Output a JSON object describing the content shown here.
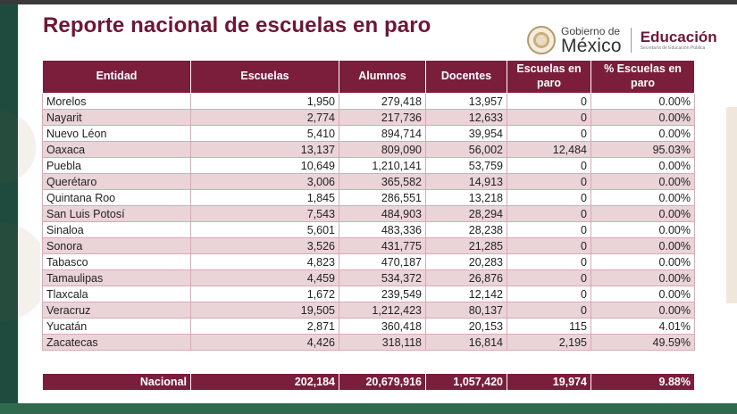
{
  "title": "Reporte nacional de escuelas en paro",
  "logo": {
    "gobierno_small": "Gobierno de",
    "gobierno_big": "México",
    "education_title": "Educación",
    "education_sub": "Secretaría de Educación Pública"
  },
  "colors": {
    "accent": "#7a1e3c",
    "row_alt": "#ead4d8",
    "footer_green": "#2f6a4f"
  },
  "table": {
    "headers": [
      "Entidad",
      "Escuelas",
      "Alumnos",
      "Docentes",
      "Escuelas en paro",
      "% Escuelas en paro"
    ],
    "rows": [
      [
        "Morelos",
        "1,950",
        "279,418",
        "13,957",
        "0",
        "0.00%"
      ],
      [
        "Nayarit",
        "2,774",
        "217,736",
        "12,633",
        "0",
        "0.00%"
      ],
      [
        "Nuevo Léon",
        "5,410",
        "894,714",
        "39,954",
        "0",
        "0.00%"
      ],
      [
        "Oaxaca",
        "13,137",
        "809,090",
        "56,002",
        "12,484",
        "95.03%"
      ],
      [
        "Puebla",
        "10,649",
        "1,210,141",
        "53,759",
        "0",
        "0.00%"
      ],
      [
        "Querétaro",
        "3,006",
        "365,582",
        "14,913",
        "0",
        "0.00%"
      ],
      [
        "Quintana Roo",
        "1,845",
        "286,551",
        "13,218",
        "0",
        "0.00%"
      ],
      [
        "San Luis Potosí",
        "7,543",
        "484,903",
        "28,294",
        "0",
        "0.00%"
      ],
      [
        "Sinaloa",
        "5,601",
        "483,336",
        "28,238",
        "0",
        "0.00%"
      ],
      [
        "Sonora",
        "3,526",
        "431,775",
        "21,285",
        "0",
        "0.00%"
      ],
      [
        "Tabasco",
        "4,823",
        "470,187",
        "20,283",
        "0",
        "0.00%"
      ],
      [
        "Tamaulipas",
        "4,459",
        "534,372",
        "26,876",
        "0",
        "0.00%"
      ],
      [
        "Tlaxcala",
        "1,672",
        "239,549",
        "12,142",
        "0",
        "0.00%"
      ],
      [
        "Veracruz",
        "19,505",
        "1,212,423",
        "80,137",
        "0",
        "0.00%"
      ],
      [
        "Yucatán",
        "2,871",
        "360,418",
        "20,153",
        "115",
        "4.01%"
      ],
      [
        "Zacatecas",
        "4,426",
        "318,118",
        "16,814",
        "2,195",
        "49.59%"
      ]
    ],
    "total": [
      "Nacional",
      "202,184",
      "20,679,916",
      "1,057,420",
      "19,974",
      "9.88%"
    ]
  }
}
